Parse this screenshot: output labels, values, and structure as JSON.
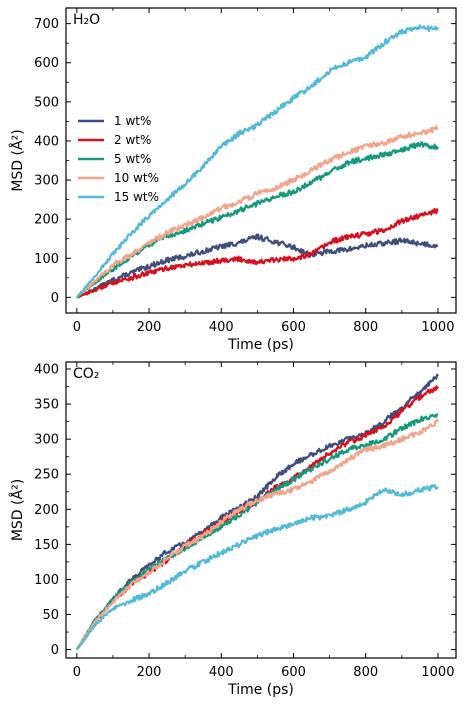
{
  "colors": {
    "1 wt%": "#3e4f7d",
    "2 wt%": "#d6101e",
    "5 wt%": "#149a7a",
    "10 wt%": "#f2a48a",
    "15 wt%": "#52bad6"
  },
  "chart_data": [
    {
      "type": "line",
      "panel_label": "H₂O",
      "xlabel": "Time (ps)",
      "ylabel": "MSD (Å²)",
      "xlim": [
        -30,
        1050
      ],
      "ylim": [
        -40,
        740
      ],
      "xticks": [
        0,
        200,
        400,
        600,
        800,
        1000
      ],
      "yticks": [
        0,
        100,
        200,
        300,
        400,
        500,
        600,
        700
      ],
      "legend_position": "center-left",
      "grid": false,
      "series": [
        {
          "name": "1 wt%",
          "x": [
            0,
            50,
            100,
            150,
            200,
            250,
            300,
            350,
            400,
            450,
            500,
            550,
            600,
            650,
            700,
            750,
            800,
            850,
            900,
            950,
            1000
          ],
          "y": [
            0,
            22,
            45,
            62,
            80,
            95,
            105,
            118,
            130,
            140,
            155,
            142,
            128,
            108,
            118,
            122,
            132,
            138,
            145,
            138,
            132
          ]
        },
        {
          "name": "2 wt%",
          "x": [
            0,
            50,
            100,
            150,
            200,
            250,
            300,
            350,
            400,
            450,
            500,
            550,
            600,
            650,
            700,
            750,
            800,
            850,
            900,
            950,
            1000
          ],
          "y": [
            0,
            18,
            38,
            50,
            62,
            75,
            82,
            88,
            95,
            98,
            90,
            95,
            100,
            110,
            140,
            155,
            162,
            172,
            195,
            210,
            222
          ]
        },
        {
          "name": "5 wt%",
          "x": [
            0,
            50,
            100,
            150,
            200,
            250,
            300,
            350,
            400,
            450,
            500,
            550,
            600,
            650,
            700,
            750,
            800,
            850,
            900,
            950,
            1000
          ],
          "y": [
            0,
            38,
            72,
            105,
            135,
            158,
            170,
            188,
            205,
            222,
            240,
            258,
            270,
            295,
            318,
            345,
            355,
            365,
            378,
            392,
            385
          ]
        },
        {
          "name": "10 wt%",
          "x": [
            0,
            50,
            100,
            150,
            200,
            250,
            300,
            350,
            400,
            450,
            500,
            550,
            600,
            650,
            700,
            750,
            800,
            850,
            900,
            950,
            1000
          ],
          "y": [
            0,
            42,
            82,
            110,
            140,
            165,
            185,
            205,
            228,
            245,
            265,
            280,
            300,
            325,
            350,
            370,
            385,
            395,
            410,
            420,
            432
          ]
        },
        {
          "name": "15 wt%",
          "x": [
            0,
            50,
            100,
            150,
            200,
            250,
            300,
            350,
            400,
            450,
            500,
            550,
            600,
            650,
            700,
            750,
            800,
            850,
            900,
            950,
            1000
          ],
          "y": [
            0,
            55,
            110,
            162,
            210,
            250,
            290,
            335,
            385,
            420,
            440,
            475,
            510,
            540,
            580,
            600,
            615,
            650,
            680,
            690,
            685
          ]
        }
      ]
    },
    {
      "type": "line",
      "panel_label": "CO₂",
      "xlabel": "Time (ps)",
      "ylabel": "MSD (Å²)",
      "xlim": [
        -30,
        1050
      ],
      "ylim": [
        -12,
        410
      ],
      "xticks": [
        0,
        200,
        400,
        600,
        800,
        1000
      ],
      "yticks": [
        0,
        50,
        100,
        150,
        200,
        250,
        300,
        350,
        400
      ],
      "grid": false,
      "series": [
        {
          "name": "1 wt%",
          "x": [
            0,
            50,
            100,
            150,
            200,
            250,
            300,
            350,
            400,
            450,
            500,
            550,
            600,
            650,
            700,
            750,
            800,
            850,
            900,
            950,
            1000
          ],
          "y": [
            0,
            40,
            72,
            100,
            120,
            140,
            152,
            168,
            188,
            202,
            218,
            245,
            265,
            278,
            290,
            300,
            308,
            325,
            345,
            368,
            390
          ]
        },
        {
          "name": "2 wt%",
          "x": [
            0,
            50,
            100,
            150,
            200,
            250,
            300,
            350,
            400,
            450,
            500,
            550,
            600,
            650,
            700,
            750,
            800,
            850,
            900,
            950,
            1000
          ],
          "y": [
            0,
            40,
            70,
            92,
            110,
            128,
            148,
            165,
            182,
            198,
            210,
            232,
            245,
            262,
            280,
            295,
            305,
            318,
            340,
            360,
            375
          ]
        },
        {
          "name": "5 wt%",
          "x": [
            0,
            50,
            100,
            150,
            200,
            250,
            300,
            350,
            400,
            450,
            500,
            550,
            600,
            650,
            700,
            750,
            800,
            850,
            900,
            950,
            1000
          ],
          "y": [
            0,
            42,
            72,
            95,
            115,
            130,
            145,
            160,
            175,
            192,
            210,
            228,
            242,
            258,
            272,
            285,
            292,
            300,
            315,
            328,
            335
          ]
        },
        {
          "name": "10 wt%",
          "x": [
            0,
            50,
            100,
            150,
            200,
            250,
            300,
            350,
            400,
            450,
            500,
            550,
            600,
            650,
            700,
            750,
            800,
            850,
            900,
            950,
            1000
          ],
          "y": [
            0,
            40,
            68,
            92,
            110,
            130,
            148,
            162,
            182,
            200,
            212,
            222,
            228,
            240,
            255,
            270,
            285,
            290,
            300,
            310,
            325
          ]
        },
        {
          "name": "15 wt%",
          "x": [
            0,
            50,
            100,
            150,
            200,
            250,
            300,
            350,
            400,
            450,
            500,
            550,
            600,
            650,
            700,
            750,
            800,
            850,
            900,
            950,
            1000
          ],
          "y": [
            0,
            35,
            58,
            70,
            80,
            95,
            112,
            125,
            138,
            150,
            162,
            172,
            178,
            188,
            190,
            200,
            210,
            228,
            220,
            228,
            232
          ]
        }
      ]
    }
  ]
}
